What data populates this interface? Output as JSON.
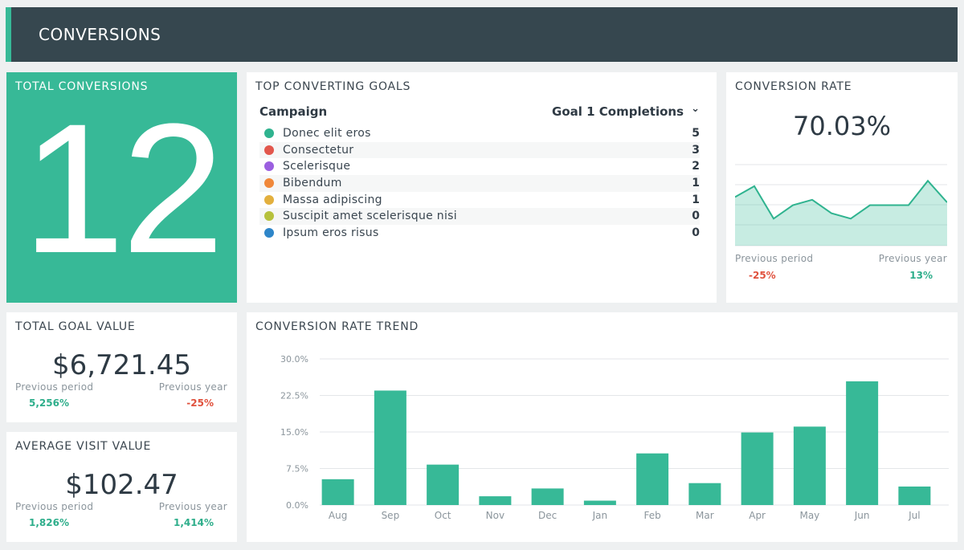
{
  "header": {
    "title": "CONVERSIONS"
  },
  "total_conversions": {
    "title": "TOTAL CONVERSIONS",
    "value": "12"
  },
  "top_goals": {
    "title": "TOP CONVERTING GOALS",
    "col_campaign": "Campaign",
    "col_metric": "Goal 1 Completions",
    "rows": [
      {
        "name": "Donec elit eros",
        "value": "5",
        "color": "#2fb38f"
      },
      {
        "name": "Consectetur",
        "value": "3",
        "color": "#e2574c"
      },
      {
        "name": "Scelerisque",
        "value": "2",
        "color": "#9b5fe0"
      },
      {
        "name": "Bibendum",
        "value": "1",
        "color": "#f0883a"
      },
      {
        "name": "Massa adipiscing",
        "value": "1",
        "color": "#e3b03e"
      },
      {
        "name": "Suscipit amet scelerisque nisi",
        "value": "0",
        "color": "#b6c13c"
      },
      {
        "name": "Ipsum eros risus",
        "value": "0",
        "color": "#2e86c9"
      }
    ]
  },
  "conversion_rate": {
    "title": "CONVERSION RATE",
    "value": "70.03%",
    "previous_period_label": "Previous period",
    "previous_period_value": "-25%",
    "previous_year_label": "Previous year",
    "previous_year_value": "13%",
    "sparkline": [
      58,
      62,
      50,
      55,
      57,
      52,
      50,
      55,
      55,
      55,
      64,
      56
    ]
  },
  "total_goal_value": {
    "title": "TOTAL GOAL VALUE",
    "value": "$6,721.45",
    "previous_period_label": "Previous period",
    "previous_period_value": "5,256%",
    "previous_year_label": "Previous year",
    "previous_year_value": "-25%"
  },
  "average_visit_value": {
    "title": "AVERAGE VISIT VALUE",
    "value": "$102.47",
    "previous_period_label": "Previous period",
    "previous_period_value": "1,826%",
    "previous_year_label": "Previous year",
    "previous_year_value": "1,414%"
  },
  "trend": {
    "title": "CONVERSION RATE TREND"
  },
  "chart_data": {
    "type": "bar",
    "title": "CONVERSION RATE TREND",
    "categories": [
      "Aug",
      "Sep",
      "Oct",
      "Nov",
      "Dec",
      "Jan",
      "Feb",
      "Mar",
      "Apr",
      "May",
      "Jun",
      "Jul"
    ],
    "values": [
      5.3,
      23.5,
      8.3,
      1.8,
      3.4,
      0.9,
      10.6,
      4.5,
      14.9,
      16.1,
      25.4,
      3.8
    ],
    "y_ticks": [
      "0.0%",
      "7.5%",
      "15.0%",
      "22.5%",
      "30.0%"
    ],
    "ylim": [
      0,
      30
    ],
    "bar_color": "#37b997",
    "grid": true
  }
}
